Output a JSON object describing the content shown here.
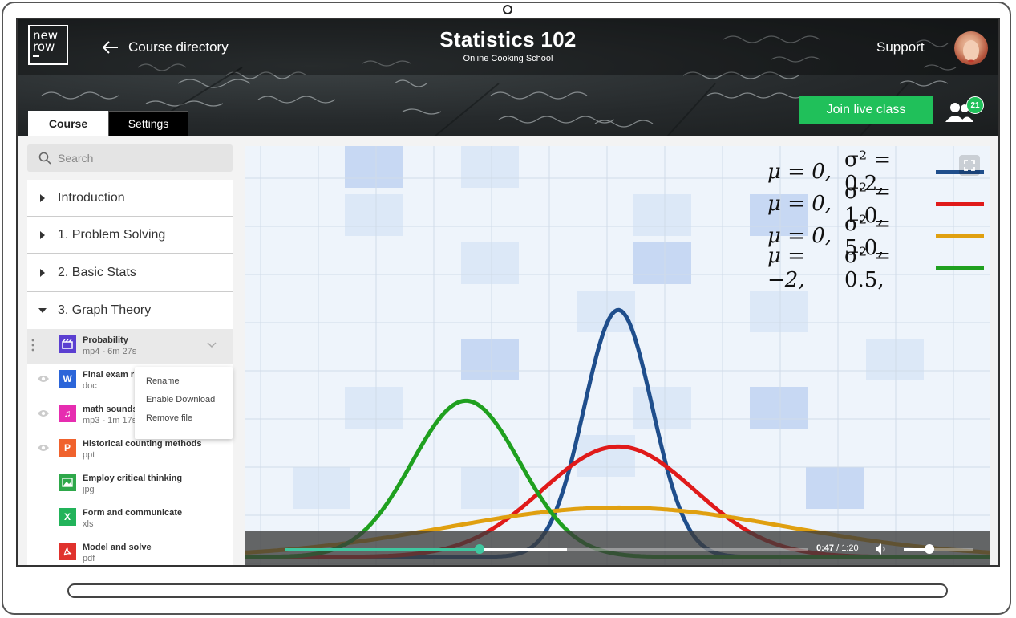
{
  "header": {
    "logo_line1": "new",
    "logo_line2": "row",
    "back_label": "Course directory",
    "course_title": "Statistics 102",
    "course_subtitle": "Online Cooking School",
    "support_label": "Support",
    "join_label": "Join live class",
    "participants_count": "21"
  },
  "tabs": [
    {
      "label": "Course",
      "active": true
    },
    {
      "label": "Settings",
      "active": false
    }
  ],
  "sidebar": {
    "search_placeholder": "Search",
    "sections": [
      {
        "label": "Introduction",
        "expanded": false
      },
      {
        "label": "1. Problem Solving",
        "expanded": false
      },
      {
        "label": "2. Basic Stats",
        "expanded": false
      },
      {
        "label": "3. Graph Theory",
        "expanded": true
      }
    ],
    "files": [
      {
        "name": "Probability",
        "meta": "mp4 - 6m  27s",
        "icon": "video-file-icon",
        "color": "#5b3fd1",
        "glyph": "▶"
      },
      {
        "name": "Final exam r",
        "meta": "doc",
        "icon": "word-file-icon",
        "color": "#2b65d9",
        "glyph": "W"
      },
      {
        "name": "math sounds",
        "meta": "mp3 - 1m  17s",
        "icon": "audio-file-icon",
        "color": "#e62db0",
        "glyph": "♫"
      },
      {
        "name": "Historical counting methods",
        "meta": "ppt",
        "icon": "powerpoint-file-icon",
        "color": "#f0622d",
        "glyph": "P"
      },
      {
        "name": "Employ critical thinking",
        "meta": "jpg",
        "icon": "image-file-icon",
        "color": "#2ea84a",
        "glyph": "▲"
      },
      {
        "name": "Form and communicate",
        "meta": "xls",
        "icon": "excel-file-icon",
        "color": "#22b35a",
        "glyph": "X"
      },
      {
        "name": "Model and solve",
        "meta": "pdf",
        "icon": "pdf-file-icon",
        "color": "#e0322d",
        "glyph": "A"
      }
    ],
    "context_menu": [
      "Rename",
      "Enable Download",
      "Remove file"
    ]
  },
  "video": {
    "legend": [
      {
        "mu": "μ = 0,",
        "sigma": "σ² = 0.2,",
        "color": "#1f4e8c"
      },
      {
        "mu": "μ = 0,",
        "sigma": "σ² = 1.0,",
        "color": "#e01a1a"
      },
      {
        "mu": "μ = 0,",
        "sigma": "σ² = 5.0,",
        "color": "#e0a010"
      },
      {
        "mu": "μ = −2,",
        "sigma": "σ² = 0.5,",
        "color": "#1fa01f"
      }
    ],
    "curves": [
      {
        "mu": 0,
        "var": 0.2,
        "color": "#1f4e8c"
      },
      {
        "mu": 0,
        "var": 1.0,
        "color": "#e01a1a"
      },
      {
        "mu": 0,
        "var": 5.0,
        "color": "#e0a010"
      },
      {
        "mu": -2,
        "var": 0.5,
        "color": "#1fa01f"
      }
    ],
    "current_time": "0:47",
    "duration": "1:20",
    "played_fraction": 0.59,
    "buffered_fraction": 0.54,
    "volume_fraction": 0.37
  }
}
